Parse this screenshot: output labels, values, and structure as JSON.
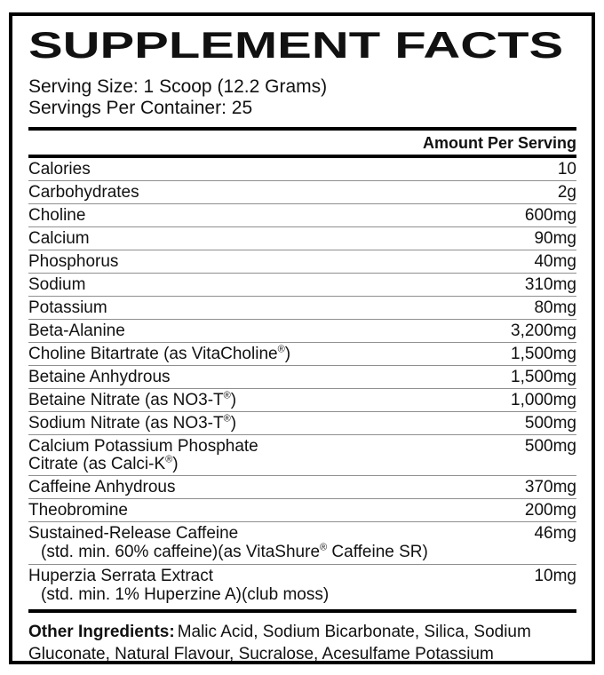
{
  "colors": {
    "background": "#ffffff",
    "text": "#111111",
    "border": "#000000",
    "separator": "#8f8f8f"
  },
  "label": {
    "title": "SUPPLEMENT FACTS",
    "serving_size": "Serving Size: 1 Scoop (12.2 Grams)",
    "servings_per_container": "Servings Per Container: 25",
    "amount_header": "Amount Per Serving",
    "rows": [
      {
        "name": "Calories",
        "amount": "10"
      },
      {
        "name": "Carbohydrates",
        "amount": "2g"
      },
      {
        "name": "Choline",
        "amount": "600mg"
      },
      {
        "name": "Calcium",
        "amount": "90mg"
      },
      {
        "name": "Phosphorus",
        "amount": "40mg"
      },
      {
        "name": "Sodium",
        "amount": "310mg"
      },
      {
        "name": "Potassium",
        "amount": "80mg"
      },
      {
        "name": "Beta-Alanine",
        "amount": "3,200mg"
      },
      {
        "name": "Choline Bitartrate (as VitaCholine®)",
        "amount": "1,500mg"
      },
      {
        "name": "Betaine Anhydrous",
        "amount": "1,500mg"
      },
      {
        "name": "Betaine Nitrate (as NO3-T®)",
        "amount": "1,000mg"
      },
      {
        "name": "Sodium Nitrate (as NO3-T®)",
        "amount": "500mg"
      },
      {
        "name": "Calcium Potassium Phosphate",
        "name_line2": "Citrate (as Calci-K®)",
        "amount": "500mg"
      },
      {
        "name": "Caffeine Anhydrous",
        "amount": "370mg"
      },
      {
        "name": "Theobromine",
        "amount": "200mg"
      },
      {
        "name": "Sustained-Release Caffeine",
        "subtext": "(std. min. 60% caffeine)(as VitaShure® Caffeine SR)",
        "amount": "46mg"
      },
      {
        "name": "Huperzia Serrata Extract",
        "subtext": "(std. min. 1% Huperzine A)(club moss)",
        "amount": "10mg"
      }
    ],
    "other_ingredients_label": "Other Ingredients:",
    "other_ingredients_text": "Malic Acid, Sodium Bicarbonate, Silica, Sodium Gluconate, Natural Flavour, Sucralose, Acesulfame Potassium"
  }
}
